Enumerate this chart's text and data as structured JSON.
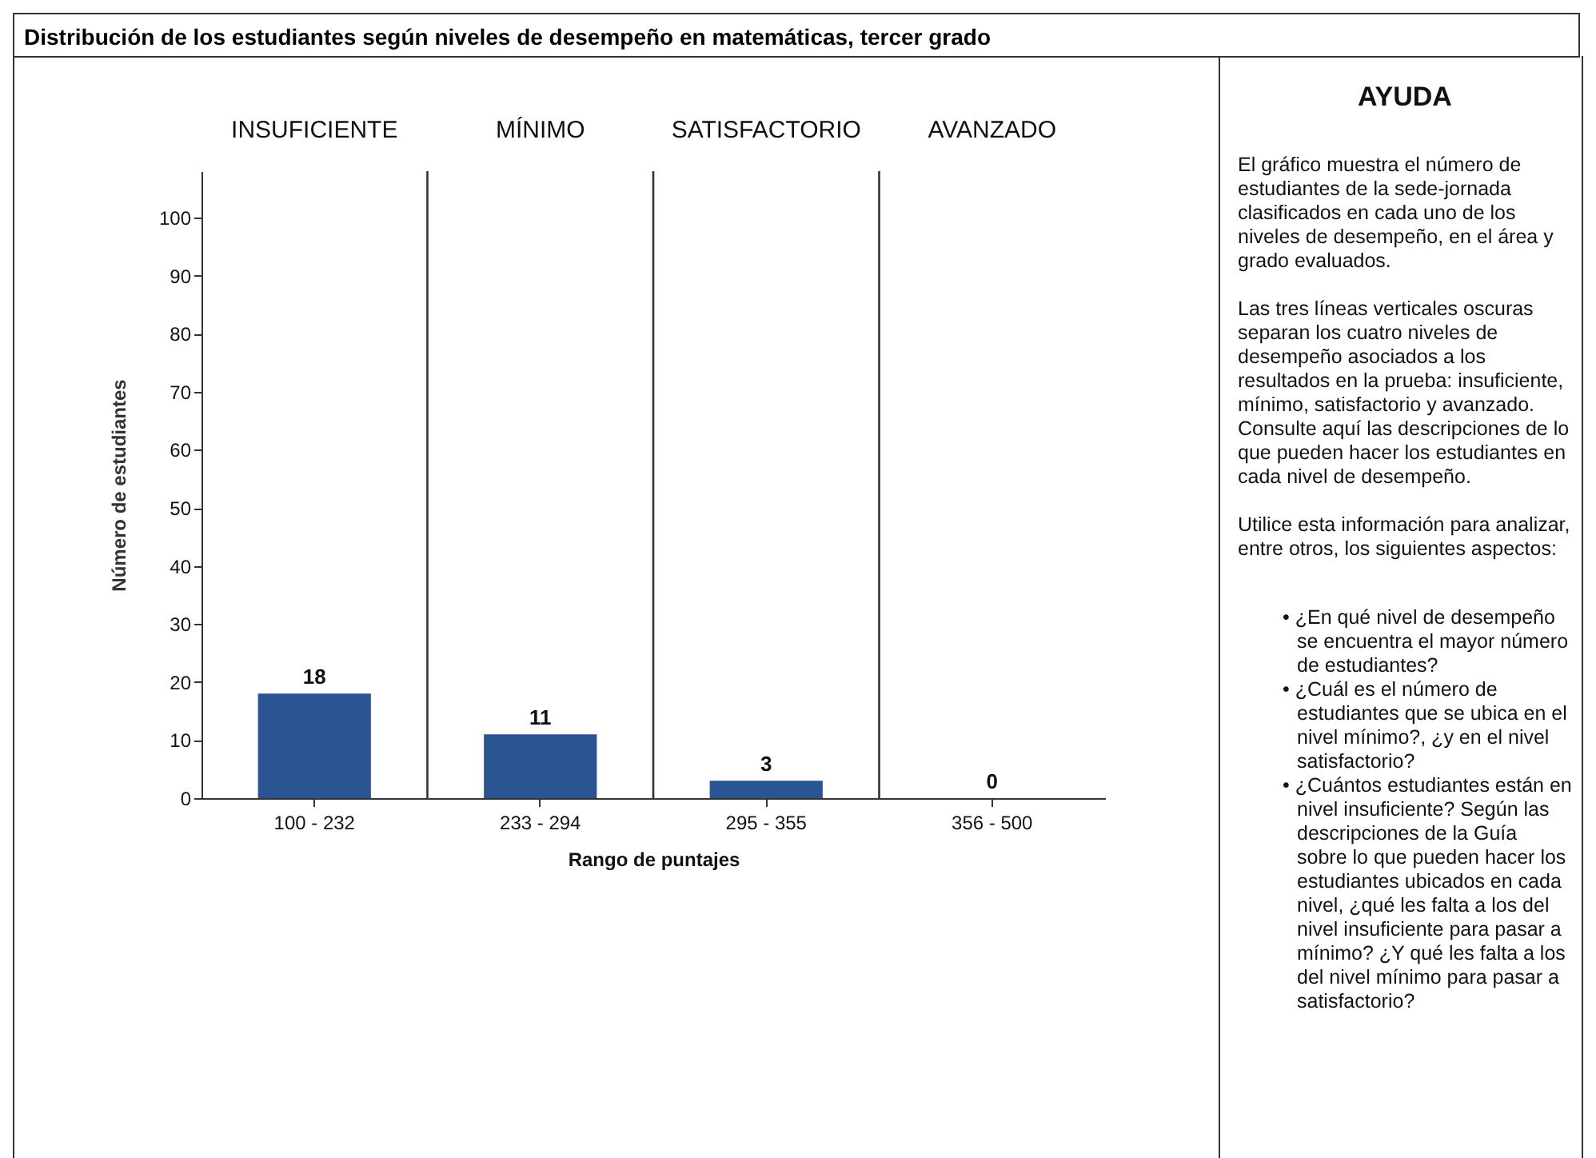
{
  "chart_data": [
    {
      "type": "bar",
      "title": "Distribución de los estudiantes según niveles de desempeño en matemáticas, tercer grado",
      "xlabel": "Rango de puntajes",
      "ylabel": "Número de estudiantes",
      "categories": [
        "100 - 232",
        "233 - 294",
        "295 - 355",
        "356 - 500"
      ],
      "values": [
        18,
        11,
        3,
        0
      ],
      "color": "#2a5592",
      "ylim": [
        0,
        108
      ],
      "yticks": [
        0,
        10,
        20,
        30,
        40,
        50,
        60,
        70,
        80,
        90,
        100
      ],
      "grid": false,
      "data_labels": true,
      "annotations": [
        "INSUFICIENTE",
        "MÍNIMO",
        "SATISFACTORIO",
        "AVANZADO"
      ]
    },
    {
      "type": "other",
      "title": "AYUDA",
      "annotations": [
        "El gráfico muestra el número de estudiantes de la sede-jornada clasificados en cada uno de los niveles de desempeño, en el área y grado evaluados.",
        "Las tres líneas verticales oscuras separan los cuatro niveles de desempeño asociados a los resultados en la prueba: insuficiente, mínimo, satisfactorio y avanzado. Consulte aquí las descripciones de lo que pueden hacer los estudiantes en cada nivel de desempeño.",
        "Utilice esta información para analizar, entre otros, los siguientes aspectos:",
        "• ¿En qué nivel de desempeño se encuentra el mayor número de estudiantes?",
        "• ¿Cuál es el número de estudiantes que se ubica en el nivel mínimo?, ¿y en el nivel satisfactorio?",
        "• ¿Cuántos estudiantes están en nivel insuficiente? Según las descripciones de la Guía sobre lo que pueden hacer los estudiantes ubicados en cada nivel, ¿qué les falta a los del nivel insuficiente para pasar a mínimo? ¿Y qué les falta a los del nivel mínimo para pasar a satisfactorio?"
      ]
    }
  ]
}
